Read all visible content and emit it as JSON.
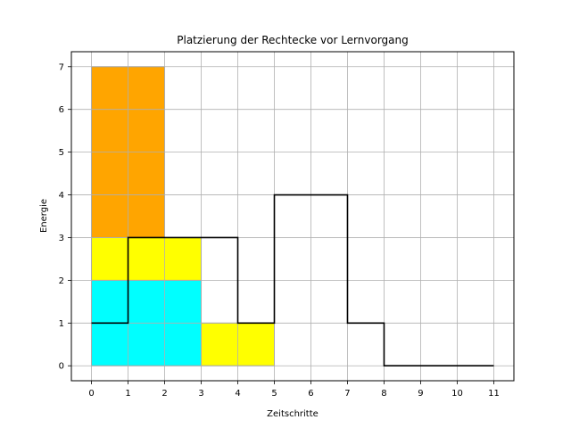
{
  "chart_data": {
    "type": "step",
    "title": "Platzierung der Rechtecke vor Lernvorgang",
    "xlabel": "Zeitschritte",
    "ylabel": "Energie",
    "xlim": [
      -0.55,
      11.55
    ],
    "ylim": [
      -0.35,
      7.35
    ],
    "xticks": [
      0,
      1,
      2,
      3,
      4,
      5,
      6,
      7,
      8,
      9,
      10,
      11
    ],
    "yticks": [
      0,
      1,
      2,
      3,
      4,
      5,
      6,
      7
    ],
    "grid": true,
    "rectangles": [
      {
        "x": 0,
        "y": 0,
        "width": 3,
        "height": 2,
        "color": "#00ffff"
      },
      {
        "x": 0,
        "y": 2,
        "width": 3,
        "height": 1,
        "color": "#ffff00"
      },
      {
        "x": 0,
        "y": 3,
        "width": 2,
        "height": 4,
        "color": "#ffa500"
      },
      {
        "x": 3,
        "y": 0,
        "width": 2,
        "height": 1,
        "color": "#ffff00"
      }
    ],
    "step_line": {
      "color": "#000000",
      "x": [
        0,
        1,
        2,
        3,
        4,
        5,
        6,
        7,
        8,
        9,
        10,
        11
      ],
      "y": [
        1,
        3,
        3,
        3,
        1,
        4,
        4,
        1,
        0,
        0,
        0,
        0
      ]
    }
  }
}
